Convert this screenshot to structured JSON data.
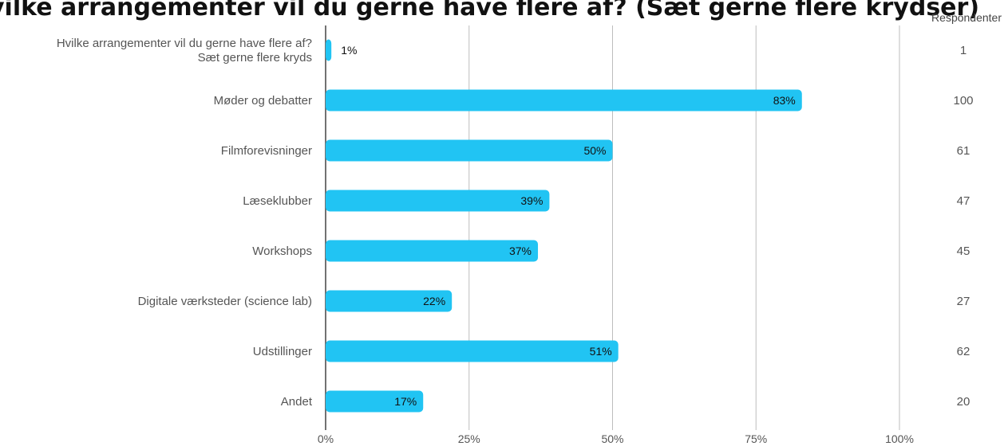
{
  "title": "vilke arrangementer vil du gerne have flere af? (Sæt gerne flere krydser)",
  "respondents_header": "Respondenter",
  "colors": {
    "bar": "#21c4f3",
    "grid": "#bdbdbd",
    "axis": "#444444",
    "label_text": "#555555",
    "value_text": "#111111"
  },
  "chart_data": {
    "type": "bar",
    "orientation": "horizontal",
    "categories": [
      [
        "Hvilke arrangementer vil du gerne have flere af?",
        "Sæt gerne flere kryds"
      ],
      [
        "Møder og debatter"
      ],
      [
        "Filmforevisninger"
      ],
      [
        "Læseklubber"
      ],
      [
        "Workshops"
      ],
      [
        "Digitale værksteder (science lab)"
      ],
      [
        "Udstillinger"
      ],
      [
        "Andet"
      ]
    ],
    "values": [
      1,
      83,
      50,
      39,
      37,
      22,
      51,
      17
    ],
    "value_labels": [
      "1%",
      "83%",
      "50%",
      "39%",
      "37%",
      "22%",
      "51%",
      "17%"
    ],
    "respondents": [
      "1",
      "100",
      "61",
      "47",
      "45",
      "27",
      "62",
      "20"
    ],
    "xlim": [
      0,
      100
    ],
    "x_ticks": [
      "0%",
      "25%",
      "50%",
      "75%",
      "100%"
    ],
    "x_tick_values": [
      0,
      25,
      50,
      75,
      100
    ],
    "grid": true,
    "legend": "none"
  }
}
